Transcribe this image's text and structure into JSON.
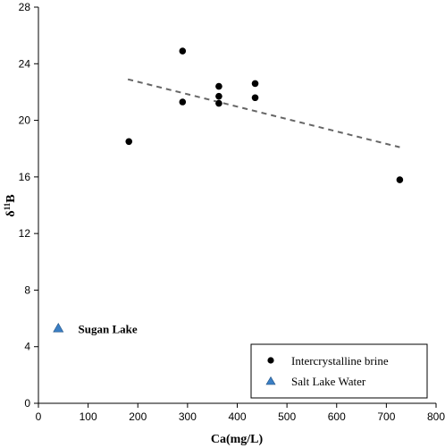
{
  "chart_data": {
    "type": "scatter",
    "xlabel": "Ca(mg/L)",
    "ylabel_main": "δ",
    "ylabel_sup": "11",
    "ylabel_tail": "B",
    "xlim": [
      0,
      800
    ],
    "ylim": [
      0,
      28
    ],
    "xticks": [
      0,
      100,
      200,
      300,
      400,
      500,
      600,
      700,
      800
    ],
    "yticks": [
      0,
      4,
      8,
      12,
      16,
      20,
      24,
      28
    ],
    "grid": false,
    "legend_placement": "bottom-right",
    "series": [
      {
        "name": "Intercrystalline brine",
        "marker": "circle",
        "color": "#000000",
        "points": [
          {
            "x": 182,
            "y": 18.5
          },
          {
            "x": 290,
            "y": 24.9
          },
          {
            "x": 290,
            "y": 21.3
          },
          {
            "x": 363,
            "y": 22.4
          },
          {
            "x": 363,
            "y": 21.7
          },
          {
            "x": 363,
            "y": 21.2
          },
          {
            "x": 436,
            "y": 22.6
          },
          {
            "x": 436,
            "y": 21.6
          },
          {
            "x": 727,
            "y": 15.8
          }
        ]
      },
      {
        "name": "Salt Lake Water",
        "marker": "triangle",
        "color": "#3b7fc4",
        "points": [
          {
            "x": 40,
            "y": 5.3
          }
        ]
      }
    ],
    "trendline": {
      "style": "dashed",
      "color": "#666666",
      "x": [
        180,
        727
      ],
      "y": [
        22.9,
        18.1
      ]
    },
    "annotations": [
      {
        "text": "Sugan Lake",
        "x": 80,
        "y": 5.2
      }
    ]
  }
}
